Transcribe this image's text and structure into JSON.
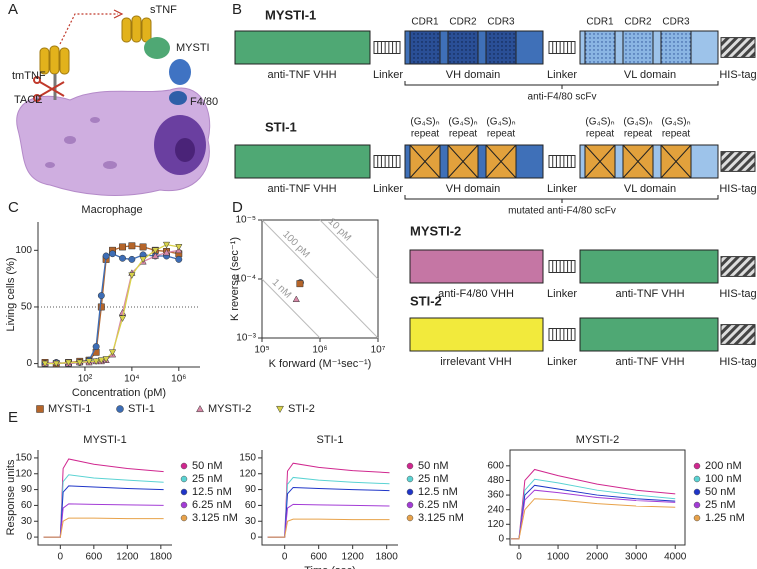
{
  "panel_labels": [
    "A",
    "B",
    "C",
    "D",
    "E"
  ],
  "diagram_a": {
    "labels": {
      "stnf": "sTNF",
      "tmtnf": "tmTNF",
      "tace": "TACE",
      "mysti": "MYSTI",
      "f480": "F4/80",
      "cell": "Macrophage"
    }
  },
  "diagram_b": {
    "mysti1": {
      "title": "MYSTI-1",
      "cdr": [
        "CDR1",
        "CDR2",
        "CDR3",
        "CDR1",
        "CDR2",
        "CDR3"
      ],
      "parts": [
        "anti-TNF VHH",
        "Linker",
        "VH domain",
        "Linker",
        "VL domain",
        "HIS-tag"
      ],
      "bracket": "anti-F4/80 scFv"
    },
    "sti1": {
      "title": "STI-1",
      "repeats": [
        "(G₄S)ₙ",
        "(G₄S)ₙ",
        "(G₄S)ₙ",
        "(G₄S)ₙ",
        "(G₄S)ₙ",
        "(G₄S)ₙ"
      ],
      "repeat_words": [
        "repeat",
        "repeat",
        "repeat",
        "repeat",
        "repeat",
        "repeat"
      ],
      "parts": [
        "anti-TNF VHH",
        "Linker",
        "VH domain",
        "Linker",
        "VL domain",
        "HIS-tag"
      ],
      "bracket": "mutated anti-F4/80 scFv"
    },
    "mysti2": {
      "title": "MYSTI-2",
      "parts": [
        "anti-F4/80 VHH",
        "Linker",
        "anti-TNF VHH",
        "HIS-tag"
      ]
    },
    "sti2": {
      "title": "STI-2",
      "parts": [
        "irrelevant VHH",
        "Linker",
        "anti-TNF VHH",
        "HIS-tag"
      ]
    }
  },
  "chart_data": [
    {
      "type": "scatter",
      "connect": true,
      "xlabel": "Concentration (pM)",
      "ylabel": "Living cells (%)",
      "log_x": true,
      "xlim": [
        1,
        8000000
      ],
      "ylim": [
        -3,
        125
      ],
      "xticks": [
        {
          "value": 100,
          "label": "10²"
        },
        {
          "value": 10000,
          "label": "10⁴"
        },
        {
          "value": 1000000,
          "label": "10⁶"
        }
      ],
      "yticks": [
        0,
        50,
        100
      ],
      "hline": 50,
      "legend": "below",
      "x": [
        2,
        6,
        20,
        60,
        150,
        300,
        500,
        800,
        1500,
        4000,
        10000,
        30000,
        100000,
        300000,
        1000000
      ],
      "series": [
        {
          "name": "MYSTI-1",
          "color": "#b5652a",
          "marker": "square",
          "values": [
            1,
            0,
            1,
            2,
            3,
            10,
            50,
            92,
            100,
            103,
            104,
            103,
            100,
            99,
            97
          ]
        },
        {
          "name": "STI-1",
          "color": "#3d6db5",
          "marker": "circle",
          "values": [
            0,
            1,
            0,
            1,
            3,
            15,
            60,
            95,
            97,
            93,
            92,
            96,
            95,
            95,
            92
          ]
        },
        {
          "name": "MYSTI-2",
          "color": "#d889a8",
          "marker": "triangle-up",
          "values": [
            0,
            1,
            0,
            1,
            1,
            2,
            2,
            3,
            8,
            45,
            80,
            90,
            95,
            98,
            100
          ]
        },
        {
          "name": "STI-2",
          "color": "#d8d24a",
          "marker": "triangle-down",
          "values": [
            0,
            0,
            1,
            1,
            2,
            2,
            3,
            4,
            10,
            40,
            78,
            92,
            100,
            105,
            103
          ]
        }
      ]
    },
    {
      "type": "scatter",
      "xlabel": "K forward (M⁻¹sec⁻¹)",
      "ylabel": "K reverse (sec⁻¹)",
      "frame": true,
      "log_x": true,
      "log_y": true,
      "xlim": [
        100000,
        10000000
      ],
      "ylim": [
        0.001,
        1e-05
      ],
      "xticks": [
        {
          "value": 100000,
          "label": "10⁵"
        },
        {
          "value": 1000000,
          "label": "10⁶"
        },
        {
          "value": 10000000,
          "label": "10⁷"
        }
      ],
      "yticks": [
        {
          "value": 1e-05,
          "label": "10⁻⁵"
        },
        {
          "value": 0.0001,
          "label": "10⁻⁴"
        },
        {
          "value": 0.001,
          "label": "10⁻³"
        }
      ],
      "kd_lines": [
        {
          "value": 1e-10,
          "label": "100 pM"
        },
        {
          "value": 1e-11,
          "label": "10 pM"
        },
        {
          "value": 1e-09,
          "label": "1 nM"
        }
      ],
      "series": [
        {
          "color": "#d889a8",
          "marker": "triangle-up",
          "x": [
            390000
          ],
          "values": [
            0.00022
          ]
        },
        {
          "color": "#3d6db5",
          "marker": "circle",
          "x": [
            460000
          ],
          "values": [
            0.000115
          ]
        },
        {
          "color": "#b5652a",
          "marker": "square",
          "x": [
            450000
          ],
          "values": [
            0.00012
          ]
        }
      ]
    },
    {
      "type": "line",
      "title": "MYSTI-1",
      "ylabel": "Response units",
      "legend": "right",
      "xlim": [
        -400,
        2000
      ],
      "ylim": [
        -15,
        165
      ],
      "xticks": [
        0,
        600,
        1200,
        1800
      ],
      "yticks": [
        0,
        30,
        60,
        90,
        120,
        150
      ],
      "x": [
        -300,
        0,
        50,
        150,
        600,
        1200,
        1850
      ],
      "series": [
        {
          "name": "50 nM",
          "color": "#d0278f",
          "values": [
            0,
            0,
            130,
            148,
            138,
            130,
            124
          ]
        },
        {
          "name": "25 nM",
          "color": "#5ad3d3",
          "values": [
            0,
            0,
            105,
            118,
            112,
            108,
            104
          ]
        },
        {
          "name": "12.5 nM",
          "color": "#1f35c8",
          "values": [
            0,
            0,
            85,
            97,
            95,
            92,
            90
          ]
        },
        {
          "name": "6.25 nM",
          "color": "#a33cd6",
          "values": [
            0,
            0,
            55,
            63,
            62,
            61,
            60
          ]
        },
        {
          "name": "3.125 nM",
          "color": "#e8a24a",
          "values": [
            0,
            0,
            30,
            36,
            36,
            35,
            35
          ]
        }
      ]
    },
    {
      "type": "line",
      "title": "STI-1",
      "xlabel": "Time (sec)",
      "legend": "right",
      "xlim": [
        -400,
        2000
      ],
      "ylim": [
        -15,
        165
      ],
      "xticks": [
        0,
        600,
        1200,
        1800
      ],
      "yticks": [
        0,
        30,
        60,
        90,
        120,
        150
      ],
      "x": [
        -300,
        0,
        50,
        150,
        600,
        1200,
        1850
      ],
      "series": [
        {
          "name": "50 nM",
          "color": "#d0278f",
          "values": [
            0,
            0,
            125,
            140,
            132,
            126,
            122
          ]
        },
        {
          "name": "25 nM",
          "color": "#5ad3d3",
          "values": [
            0,
            0,
            100,
            113,
            108,
            104,
            101
          ]
        },
        {
          "name": "12.5 nM",
          "color": "#1f35c8",
          "values": [
            0,
            0,
            82,
            94,
            92,
            90,
            88
          ]
        },
        {
          "name": "6.25 nM",
          "color": "#a33cd6",
          "values": [
            0,
            0,
            55,
            62,
            61,
            60,
            59
          ]
        },
        {
          "name": "3.125 nM",
          "color": "#e8a24a",
          "values": [
            0,
            0,
            30,
            34,
            34,
            33,
            33
          ]
        }
      ]
    },
    {
      "type": "line",
      "title": "MYSTI-2",
      "frame": true,
      "legend": "right",
      "xlim": [
        -230,
        4250
      ],
      "ylim": [
        -50,
        730
      ],
      "xticks": [
        0,
        1000,
        2000,
        3000,
        4000
      ],
      "yticks": [
        0,
        120,
        240,
        360,
        480,
        600
      ],
      "x": [
        -200,
        0,
        150,
        400,
        1000,
        2000,
        3000,
        4000
      ],
      "series": [
        {
          "name": "200 nM",
          "color": "#d0278f",
          "values": [
            0,
            0,
            480,
            570,
            520,
            450,
            400,
            370
          ]
        },
        {
          "name": "100 nM",
          "color": "#5ad3d3",
          "values": [
            0,
            0,
            400,
            490,
            460,
            400,
            360,
            330
          ]
        },
        {
          "name": "50 nM",
          "color": "#1f35c8",
          "values": [
            0,
            0,
            360,
            440,
            410,
            360,
            330,
            310
          ]
        },
        {
          "name": "25 nM",
          "color": "#a33cd6",
          "values": [
            0,
            0,
            320,
            400,
            380,
            340,
            315,
            300
          ]
        },
        {
          "name": "1.25 nM",
          "color": "#e8a24a",
          "values": [
            0,
            0,
            240,
            330,
            320,
            290,
            270,
            260
          ]
        }
      ]
    }
  ]
}
